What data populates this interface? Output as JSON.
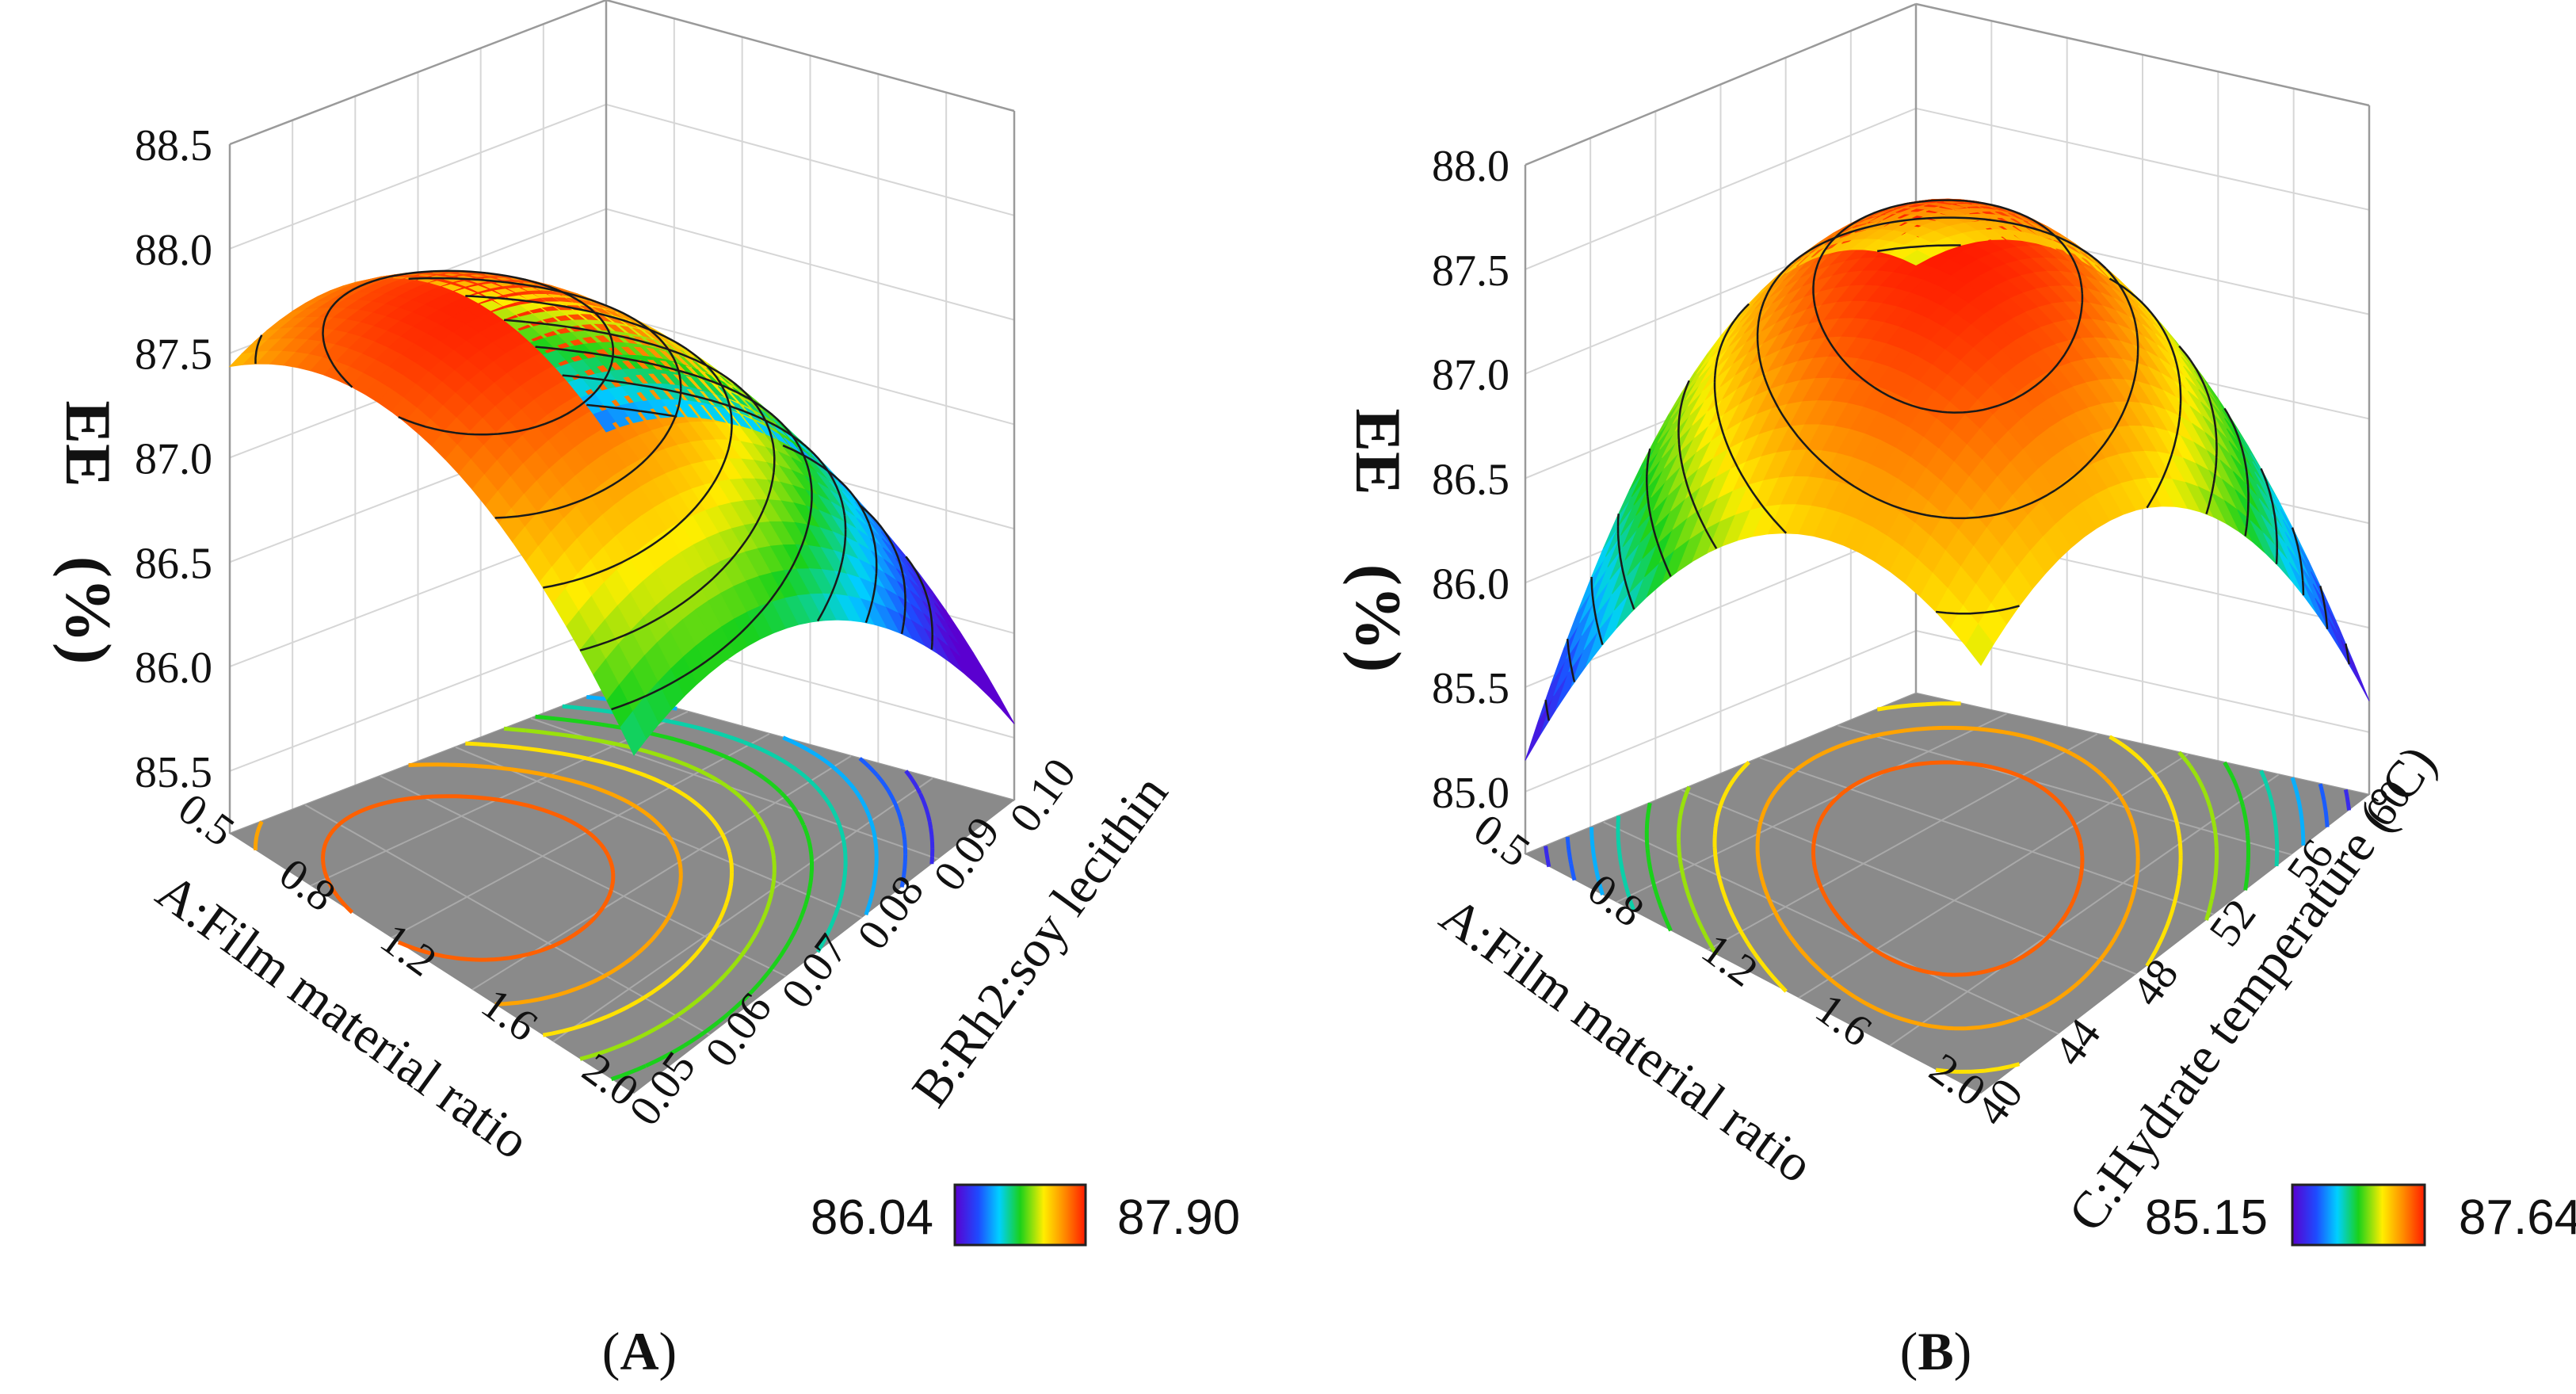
{
  "chart_data": [
    {
      "type": "surface3d",
      "panel_label": "A",
      "zlabel_top": "EE",
      "zlabel_bottom": "(%)",
      "xlabel": "A:Film material ratio",
      "ylabel": "B:Rh2:soy lecithin",
      "x_ticks": [
        "0.5",
        "0.8",
        "1.2",
        "1.6",
        "2.0"
      ],
      "y_ticks": [
        "0.05",
        "0.06",
        "0.07",
        "0.08",
        "0.09",
        "0.10"
      ],
      "z_ticks": [
        "85.5",
        "86.0",
        "86.5",
        "87.0",
        "87.5",
        "88.0",
        "88.5"
      ],
      "xlim": [
        0.5,
        2.0
      ],
      "ylim": [
        0.05,
        0.1
      ],
      "zlim": [
        85.2,
        88.5
      ],
      "legend": {
        "min": "86.04",
        "max": "87.90"
      },
      "surface_min": 86.04,
      "surface_max": 87.9
    },
    {
      "type": "surface3d",
      "panel_label": "B",
      "zlabel_top": "EE",
      "zlabel_bottom": "(%)",
      "xlabel": "A:Film material ratio",
      "ylabel": "C:Hydrate temperature (°C)",
      "x_ticks": [
        "0.5",
        "0.8",
        "1.2",
        "1.6",
        "2.0"
      ],
      "y_ticks": [
        "40",
        "44",
        "48",
        "52",
        "56",
        "60"
      ],
      "z_ticks": [
        "85.0",
        "85.5",
        "86.0",
        "86.5",
        "87.0",
        "87.5",
        "88.0"
      ],
      "xlim": [
        0.5,
        2.0
      ],
      "ylim": [
        40,
        60
      ],
      "zlim": [
        84.7,
        88.0
      ],
      "legend": {
        "min": "85.15",
        "max": "87.64"
      },
      "surface_min": 85.15,
      "surface_max": 87.64
    }
  ],
  "colors": {
    "floor": "#8a8a8a",
    "contour": "#1a1a1a",
    "grid": "#d6d6d6",
    "frame": "#9a9a9a"
  }
}
